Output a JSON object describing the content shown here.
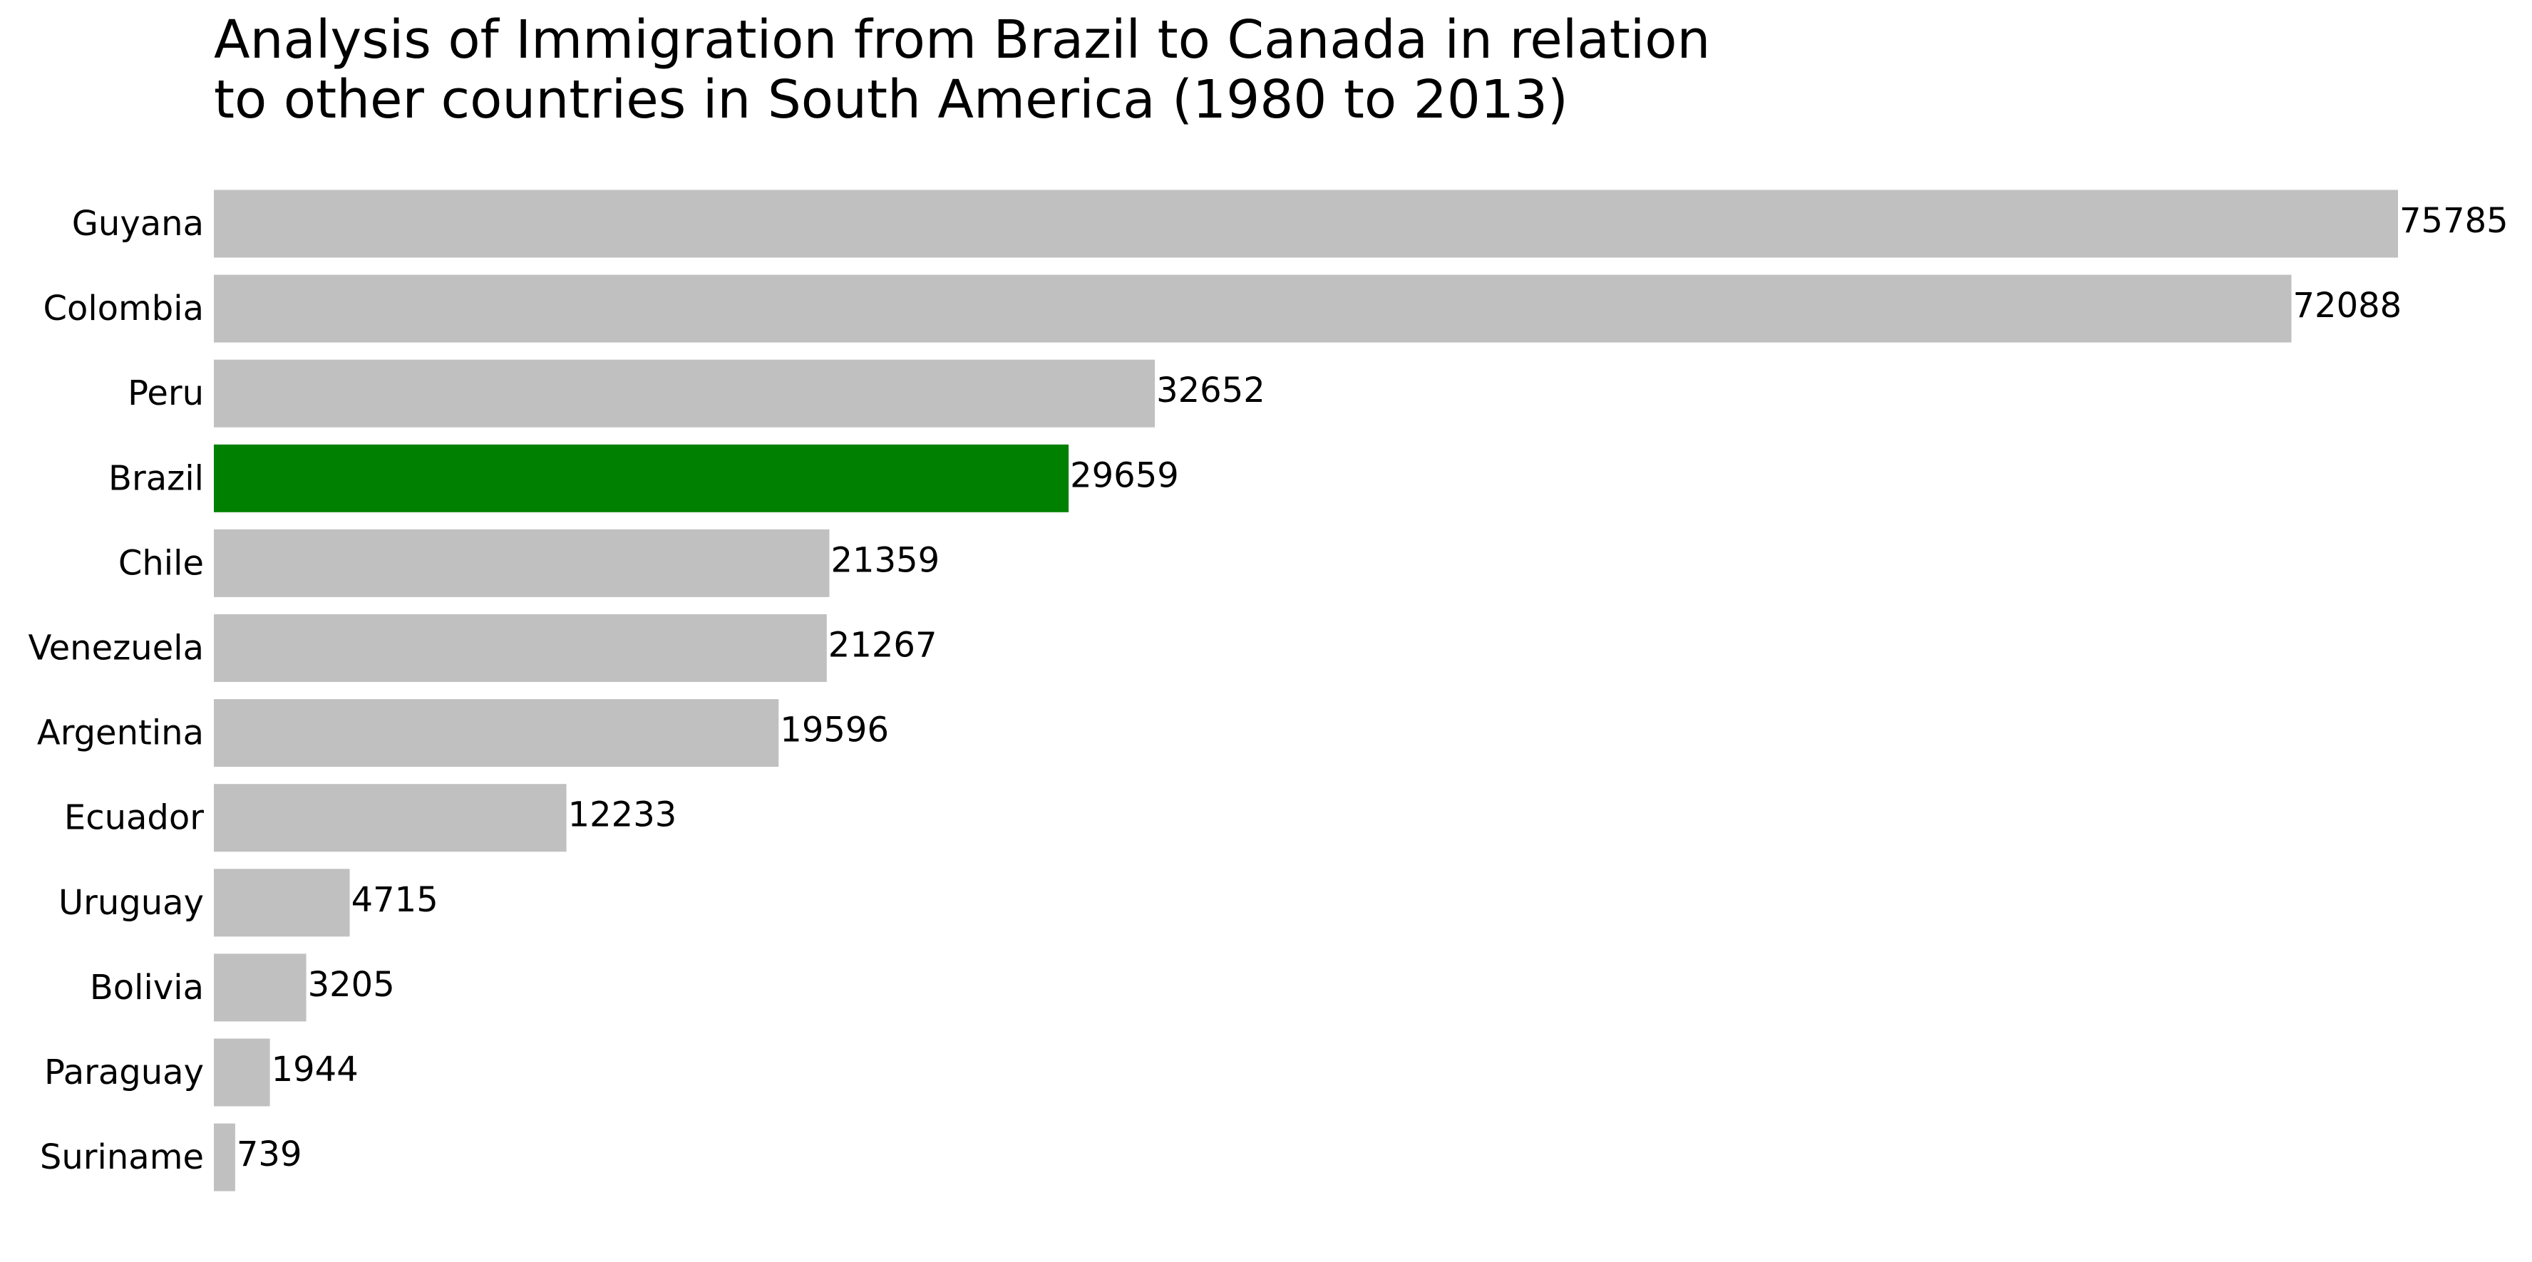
{
  "chart_data": {
    "type": "bar",
    "orientation": "horizontal",
    "title_lines": [
      "Analysis of Immigration from Brazil to Canada in relation",
      "to other countries in South America (1980 to 2013)"
    ],
    "categories": [
      "Guyana",
      "Colombia",
      "Peru",
      "Brazil",
      "Chile",
      "Venezuela",
      "Argentina",
      "Ecuador",
      "Uruguay",
      "Bolivia",
      "Paraguay",
      "Suriname"
    ],
    "values": [
      75785,
      72088,
      32652,
      29659,
      21359,
      21267,
      19596,
      12233,
      4715,
      3205,
      1944,
      739
    ],
    "highlight": "Brazil",
    "colors": {
      "default": "#c0c0c0",
      "highlight": "#008000"
    },
    "xlim": [
      0,
      75785
    ],
    "grid": false,
    "axes_visible": false,
    "legend": "none",
    "data_labels": true
  }
}
